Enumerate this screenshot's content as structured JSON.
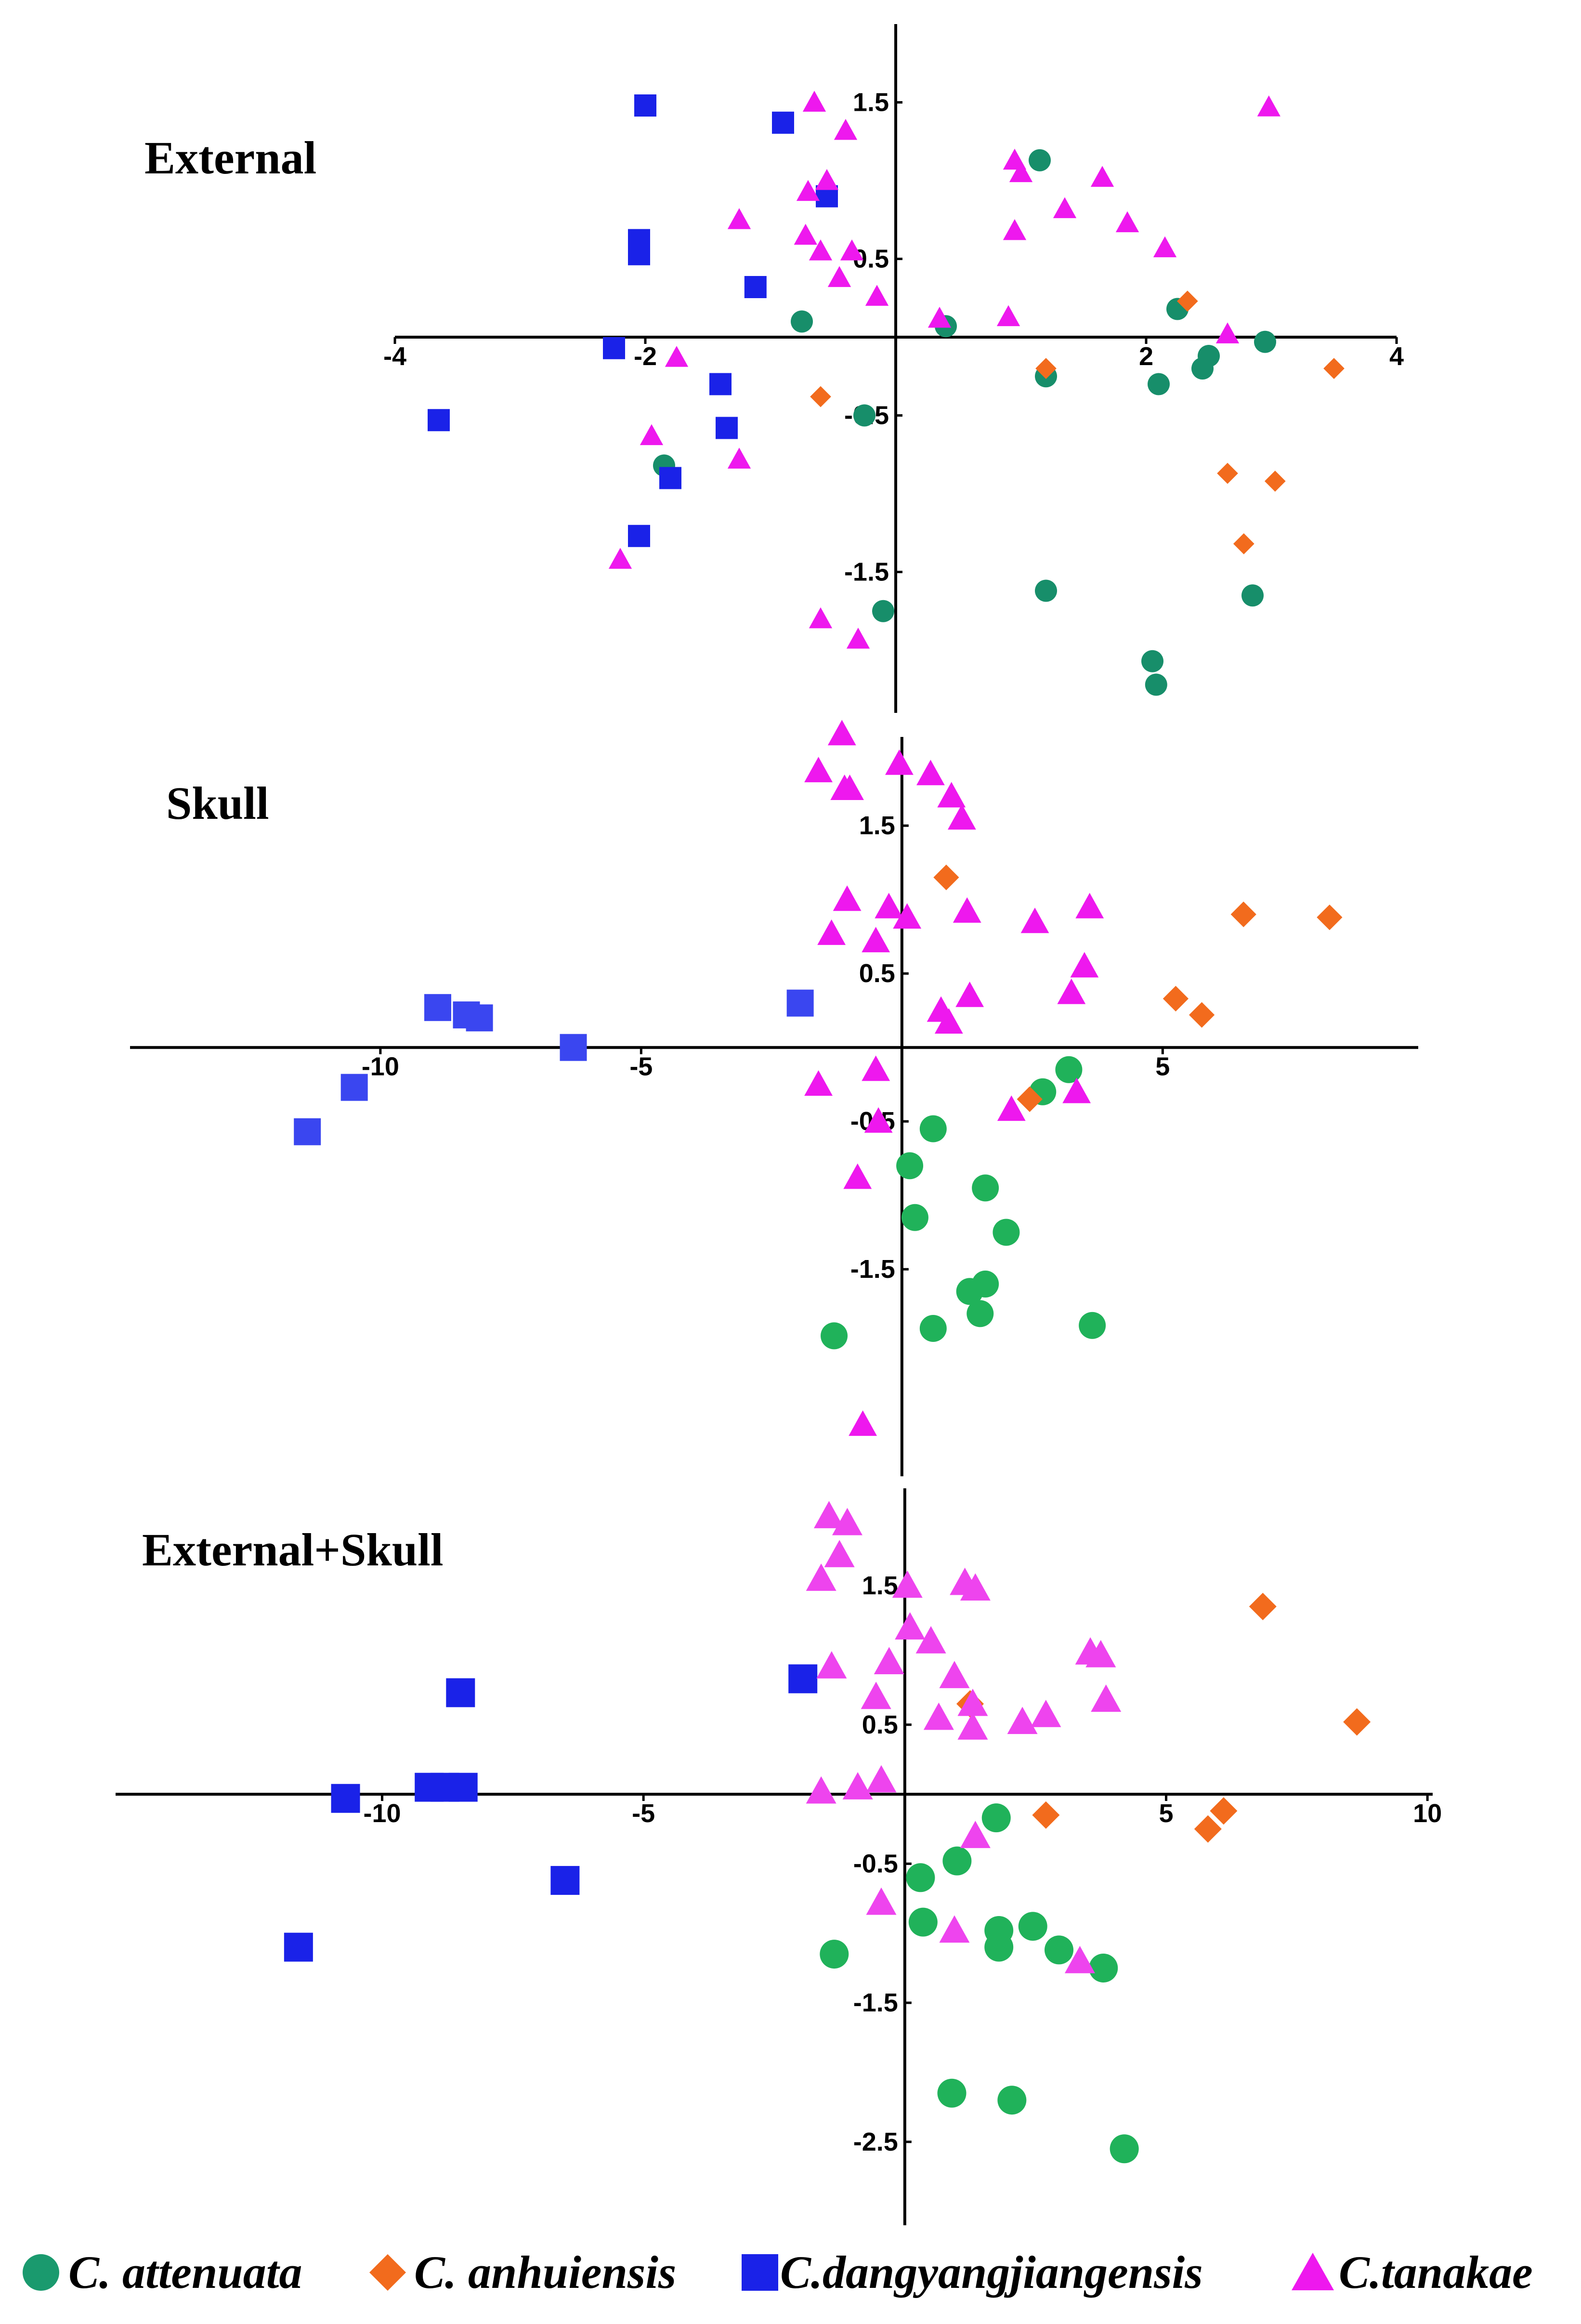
{
  "legend": {
    "entries": [
      {
        "label": "C. attenuata",
        "color": "#1a9a6e",
        "shape": "circle"
      },
      {
        "label": "C. anhuiensis",
        "color": "#f26b1d",
        "shape": "diamond"
      },
      {
        "label": "C.dangyangjiangensis",
        "color": "#1a22e8",
        "shape": "square"
      },
      {
        "label": "C.tanakae",
        "color": "#ee18ee",
        "shape": "triangle"
      }
    ]
  },
  "chart_data": [
    {
      "type": "scatter",
      "title": "External",
      "xlim": [
        -4,
        4
      ],
      "ylim": [
        -2.4,
        2.0
      ],
      "x_ticks": [
        -4,
        -2,
        2,
        4
      ],
      "x_tick_labels": [
        "-4",
        "-2",
        "2",
        "4"
      ],
      "y_ticks": [
        1.5,
        0.5,
        -0.5,
        -1.5
      ],
      "y_tick_labels": [
        "1.5",
        "0.5",
        "-0.5",
        "-1.5"
      ],
      "colors": {
        "C. attenuata": "#178e6a",
        "C. anhuiensis": "#f26b1d",
        "C.dangyangjiangensis": "#1a22e8",
        "C.tanakae": "#ee18ee"
      },
      "series": [
        {
          "name": "C. attenuata",
          "shape": "circle",
          "points": [
            [
              -0.75,
              0.1
            ],
            [
              0.4,
              0.07
            ],
            [
              1.15,
              1.13
            ],
            [
              2.25,
              0.18
            ],
            [
              2.1,
              -0.3
            ],
            [
              2.45,
              -0.2
            ],
            [
              2.5,
              -0.12
            ],
            [
              2.95,
              -0.03
            ],
            [
              1.2,
              -0.25
            ],
            [
              -1.85,
              -0.82
            ],
            [
              -0.1,
              -1.75
            ],
            [
              -0.25,
              -0.5
            ],
            [
              1.2,
              -1.62
            ],
            [
              2.05,
              -2.07
            ],
            [
              2.08,
              -2.22
            ],
            [
              2.85,
              -1.65
            ]
          ]
        },
        {
          "name": "C. anhuiensis",
          "shape": "diamond",
          "points": [
            [
              2.33,
              0.23
            ],
            [
              1.2,
              -0.2
            ],
            [
              3.5,
              -0.2
            ],
            [
              -0.6,
              -0.38
            ],
            [
              2.65,
              -0.87
            ],
            [
              3.03,
              -0.92
            ],
            [
              2.78,
              -1.32
            ]
          ]
        },
        {
          "name": "C.dangyangjiangensis",
          "shape": "square",
          "points": [
            [
              -2.0,
              1.48
            ],
            [
              -0.9,
              1.37
            ],
            [
              -0.55,
              0.9
            ],
            [
              -2.05,
              0.62
            ],
            [
              -2.05,
              0.53
            ],
            [
              -1.12,
              0.32
            ],
            [
              -2.25,
              -0.07
            ],
            [
              -1.4,
              -0.3
            ],
            [
              -3.65,
              -0.53
            ],
            [
              -1.35,
              -0.58
            ],
            [
              -1.8,
              -0.9
            ],
            [
              -2.05,
              -1.27
            ]
          ]
        },
        {
          "name": "C.tanakae",
          "shape": "triangle",
          "points": [
            [
              -0.65,
              1.5
            ],
            [
              -0.4,
              1.32
            ],
            [
              2.98,
              1.47
            ],
            [
              0.95,
              1.13
            ],
            [
              1.0,
              1.05
            ],
            [
              1.65,
              1.02
            ],
            [
              -0.55,
              1.0
            ],
            [
              -0.7,
              0.93
            ],
            [
              1.35,
              0.82
            ],
            [
              -1.25,
              0.75
            ],
            [
              1.85,
              0.73
            ],
            [
              0.95,
              0.68
            ],
            [
              -0.72,
              0.65
            ],
            [
              -0.6,
              0.55
            ],
            [
              -0.35,
              0.55
            ],
            [
              2.15,
              0.57
            ],
            [
              -0.45,
              0.38
            ],
            [
              -0.15,
              0.26
            ],
            [
              0.35,
              0.12
            ],
            [
              0.9,
              0.13
            ],
            [
              2.65,
              0.02
            ],
            [
              -1.75,
              -0.13
            ],
            [
              -1.95,
              -0.63
            ],
            [
              -1.25,
              -0.78
            ],
            [
              -2.2,
              -1.42
            ],
            [
              -0.6,
              -1.8
            ],
            [
              -0.3,
              -1.93
            ]
          ]
        }
      ]
    },
    {
      "type": "scatter",
      "title": "Skull",
      "xlim": [
        -14.8,
        9.9
      ],
      "ylim": [
        -2.9,
        2.1
      ],
      "x_ticks": [
        -10,
        -5,
        5
      ],
      "x_tick_labels": [
        "-10",
        "-5",
        "5"
      ],
      "y_ticks": [
        1.5,
        0.5,
        -0.5,
        -1.5
      ],
      "y_tick_labels": [
        "1.5",
        "0.5",
        "-0.5",
        "-1.5"
      ],
      "colors": {
        "C. attenuata": "#20b25a",
        "C. anhuiensis": "#f26b1d",
        "C.dangyangjiangensis": "#3a46f0",
        "C.tanakae": "#ee18ee"
      },
      "series": [
        {
          "name": "C. attenuata",
          "shape": "circle",
          "points": [
            [
              3.2,
              -0.15
            ],
            [
              2.7,
              -0.3
            ],
            [
              0.6,
              -0.55
            ],
            [
              0.15,
              -0.8
            ],
            [
              0.25,
              -1.15
            ],
            [
              1.6,
              -0.95
            ],
            [
              2.0,
              -1.25
            ],
            [
              1.6,
              -1.6
            ],
            [
              1.3,
              -1.65
            ],
            [
              1.5,
              -1.8
            ],
            [
              0.6,
              -1.9
            ],
            [
              -1.3,
              -1.95
            ],
            [
              3.65,
              -1.88
            ]
          ]
        },
        {
          "name": "C. anhuiensis",
          "shape": "diamond",
          "points": [
            [
              0.85,
              1.15
            ],
            [
              6.55,
              0.9
            ],
            [
              8.2,
              0.88
            ],
            [
              5.25,
              0.33
            ],
            [
              5.75,
              0.22
            ],
            [
              2.45,
              -0.35
            ]
          ]
        },
        {
          "name": "C.dangyangjiangensis",
          "shape": "square",
          "points": [
            [
              -8.9,
              0.27
            ],
            [
              -8.35,
              0.22
            ],
            [
              -8.1,
              0.2
            ],
            [
              -1.95,
              0.3
            ],
            [
              -6.3,
              0.0
            ],
            [
              -10.5,
              -0.27
            ],
            [
              -11.4,
              -0.57
            ]
          ]
        },
        {
          "name": "C.tanakae",
          "shape": "triangle",
          "points": [
            [
              -1.15,
              2.12
            ],
            [
              -1.6,
              1.87
            ],
            [
              -1.1,
              1.75
            ],
            [
              -1.0,
              1.75
            ],
            [
              -0.05,
              1.92
            ],
            [
              0.55,
              1.85
            ],
            [
              0.95,
              1.7
            ],
            [
              1.15,
              1.55
            ],
            [
              -1.05,
              1.0
            ],
            [
              -1.35,
              0.77
            ],
            [
              -0.5,
              0.72
            ],
            [
              -0.25,
              0.95
            ],
            [
              0.1,
              0.88
            ],
            [
              1.25,
              0.92
            ],
            [
              2.55,
              0.85
            ],
            [
              3.6,
              0.95
            ],
            [
              3.5,
              0.55
            ],
            [
              3.25,
              0.37
            ],
            [
              1.3,
              0.35
            ],
            [
              0.75,
              0.25
            ],
            [
              0.9,
              0.17
            ],
            [
              -1.6,
              -0.25
            ],
            [
              -0.5,
              -0.15
            ],
            [
              -0.45,
              -0.5
            ],
            [
              -0.85,
              -0.88
            ],
            [
              2.1,
              -0.42
            ],
            [
              3.35,
              -0.3
            ],
            [
              -0.75,
              -2.55
            ]
          ]
        }
      ]
    },
    {
      "type": "scatter",
      "title": "External+Skull",
      "xlim": [
        -15.1,
        10.1
      ],
      "ylim": [
        -3.1,
        2.2
      ],
      "x_ticks": [
        -10,
        -5,
        5,
        10
      ],
      "x_tick_labels": [
        "-10",
        "-5",
        "5",
        "10"
      ],
      "y_ticks": [
        1.5,
        0.5,
        -0.5,
        -1.5,
        -2.5
      ],
      "y_tick_labels": [
        "1.5",
        "0.5",
        "-0.5",
        "-1.5",
        "-2.5"
      ],
      "colors": {
        "C. attenuata": "#20b25a",
        "C. anhuiensis": "#f26b1d",
        "C.dangyangjiangensis": "#1a22e8",
        "C.tanakae": "#ee44ee"
      },
      "series": [
        {
          "name": "C. attenuata",
          "shape": "circle",
          "points": [
            [
              1.75,
              -0.17
            ],
            [
              1.0,
              -0.48
            ],
            [
              0.3,
              -0.6
            ],
            [
              0.35,
              -0.92
            ],
            [
              1.8,
              -0.98
            ],
            [
              2.45,
              -0.95
            ],
            [
              1.8,
              -1.1
            ],
            [
              2.95,
              -1.12
            ],
            [
              3.8,
              -1.25
            ],
            [
              -1.35,
              -1.15
            ],
            [
              0.9,
              -2.15
            ],
            [
              2.05,
              -2.2
            ],
            [
              4.2,
              -2.55
            ]
          ]
        },
        {
          "name": "C. anhuiensis",
          "shape": "diamond",
          "points": [
            [
              6.85,
              1.35
            ],
            [
              8.65,
              0.52
            ],
            [
              1.25,
              0.65
            ],
            [
              2.7,
              -0.15
            ],
            [
              6.1,
              -0.12
            ],
            [
              5.8,
              -0.25
            ]
          ]
        },
        {
          "name": "C.dangyangjiangensis",
          "shape": "square",
          "points": [
            [
              -1.95,
              0.83
            ],
            [
              -8.5,
              0.73
            ],
            [
              -9.1,
              0.05
            ],
            [
              -8.8,
              0.05
            ],
            [
              -8.45,
              0.05
            ],
            [
              -10.7,
              -0.03
            ],
            [
              -6.5,
              -0.62
            ],
            [
              -11.6,
              -1.1
            ]
          ]
        },
        {
          "name": "C.tanakae",
          "shape": "triangle",
          "points": [
            [
              -1.45,
              2.0
            ],
            [
              -1.1,
              1.95
            ],
            [
              -1.25,
              1.72
            ],
            [
              -1.6,
              1.55
            ],
            [
              0.05,
              1.5
            ],
            [
              1.15,
              1.52
            ],
            [
              1.35,
              1.48
            ],
            [
              0.1,
              1.2
            ],
            [
              0.5,
              1.1
            ],
            [
              -1.4,
              0.92
            ],
            [
              -0.3,
              0.95
            ],
            [
              0.95,
              0.85
            ],
            [
              -0.55,
              0.7
            ],
            [
              1.3,
              0.65
            ],
            [
              0.65,
              0.55
            ],
            [
              1.3,
              0.48
            ],
            [
              2.25,
              0.52
            ],
            [
              2.7,
              0.57
            ],
            [
              3.55,
              1.02
            ],
            [
              3.75,
              1.0
            ],
            [
              3.85,
              0.68
            ],
            [
              -1.6,
              0.02
            ],
            [
              -0.9,
              0.05
            ],
            [
              -0.45,
              0.1
            ],
            [
              1.35,
              -0.3
            ],
            [
              -0.45,
              -0.78
            ],
            [
              0.95,
              -0.98
            ],
            [
              3.35,
              -1.2
            ]
          ]
        }
      ]
    }
  ]
}
